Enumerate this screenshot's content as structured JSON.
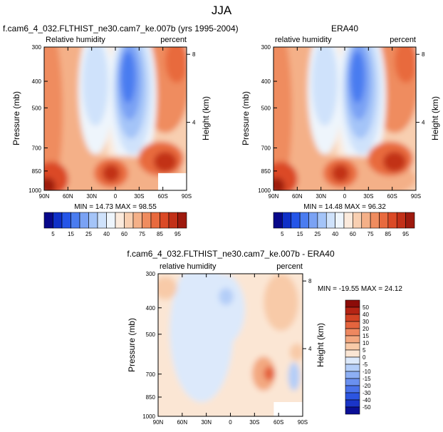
{
  "figure": {
    "title": "JJA"
  },
  "chart_data": [
    {
      "type": "heatmap",
      "title": "f.cam6_4_032.FLTHIST_ne30.cam7_ke.007b (yrs 1995-2004)",
      "left_label": "Relative humidity",
      "right_label": "percent",
      "ylabel": "Pressure (mb)",
      "y2label": "Height (km)",
      "x_ticks": [
        "90N",
        "60N",
        "30N",
        "0",
        "30S",
        "60S",
        "90S"
      ],
      "y_ticks": [
        300,
        400,
        500,
        700,
        850,
        1000
      ],
      "y2_ticks": [
        8,
        4
      ],
      "stats": "MIN = 14.73  MAX = 98.55",
      "min": 14.73,
      "max": 98.55,
      "colorbar": {
        "levels": [
          5,
          10,
          15,
          20,
          25,
          30,
          40,
          50,
          60,
          70,
          75,
          80,
          85,
          90,
          95
        ],
        "labels": [
          5,
          15,
          25,
          40,
          60,
          75,
          85,
          95
        ],
        "colors": [
          "#08088a",
          "#0f30c8",
          "#2455e8",
          "#4a7cf0",
          "#7aa2f4",
          "#a4c4f8",
          "#cfe2fb",
          "#eef5fc",
          "#fbeadc",
          "#f8cfb1",
          "#f4b088",
          "#ef8c5f",
          "#e86a3e",
          "#db4a26",
          "#c23018",
          "#9e1a0e"
        ]
      }
    },
    {
      "type": "heatmap",
      "title": "ERA40",
      "left_label": "relative humidity",
      "right_label": "percent",
      "ylabel": "Pressure (mb)",
      "y2label": "Height (km)",
      "x_ticks": [
        "90N",
        "60N",
        "30N",
        "0",
        "30S",
        "60S",
        "90S"
      ],
      "y_ticks": [
        300,
        400,
        500,
        700,
        850,
        1000
      ],
      "y2_ticks": [
        8,
        4
      ],
      "stats": "MIN = 14.48  MAX = 96.32",
      "min": 14.48,
      "max": 96.32,
      "colorbar": {
        "levels": [
          5,
          10,
          15,
          20,
          25,
          30,
          40,
          50,
          60,
          70,
          75,
          80,
          85,
          90,
          95
        ],
        "labels": [
          5,
          15,
          25,
          40,
          60,
          75,
          85,
          95
        ],
        "colors": [
          "#08088a",
          "#0f30c8",
          "#2455e8",
          "#4a7cf0",
          "#7aa2f4",
          "#a4c4f8",
          "#cfe2fb",
          "#eef5fc",
          "#fbeadc",
          "#f8cfb1",
          "#f4b088",
          "#ef8c5f",
          "#e86a3e",
          "#db4a26",
          "#c23018",
          "#9e1a0e"
        ]
      }
    },
    {
      "type": "heatmap",
      "title": "f.cam6_4_032.FLTHIST_ne30.cam7_ke.007b - ERA40",
      "left_label": "relative humidity",
      "right_label": "percent",
      "ylabel": "Pressure (mb)",
      "y2label": "Height (km)",
      "x_ticks": [
        "90N",
        "60N",
        "30N",
        "0",
        "30S",
        "60S",
        "90S"
      ],
      "y_ticks": [
        300,
        400,
        500,
        700,
        850,
        1000
      ],
      "y2_ticks": [
        8,
        4
      ],
      "stats": "MIN = -19.55  MAX = 24.12",
      "min": -19.55,
      "max": 24.12,
      "colorbar": {
        "levels": [
          -50,
          -40,
          -30,
          -20,
          -15,
          -10,
          -5,
          0,
          5,
          10,
          15,
          20,
          30,
          40,
          50
        ],
        "labels": [
          -50,
          -40,
          -30,
          -20,
          -15,
          -10,
          -5,
          0,
          5,
          10,
          15,
          20,
          30,
          40,
          50
        ],
        "colors": [
          "#0a0f96",
          "#1a35c8",
          "#2c55e0",
          "#4a72ea",
          "#6a90f0",
          "#8dafF4",
          "#b4cef8",
          "#dce9fb",
          "#fbe6d4",
          "#f8caa8",
          "#f3a880",
          "#ee8860",
          "#e4643e",
          "#d24324",
          "#b52414",
          "#8c0c08"
        ]
      }
    }
  ]
}
